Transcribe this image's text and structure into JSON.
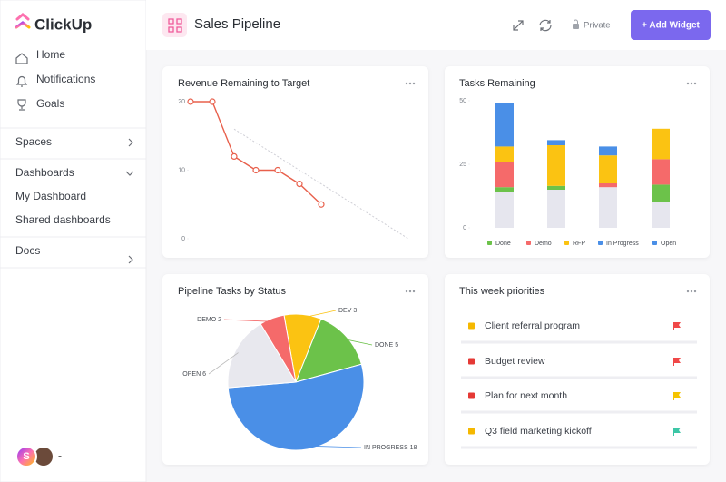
{
  "sidebar": {
    "logo": "ClickUp",
    "nav": [
      "Home",
      "Notifications",
      "Goals"
    ],
    "spaces": "Spaces",
    "dashboards": "Dashboards",
    "dashboard_items": [
      "My Dashboard",
      "Shared dashboards"
    ],
    "docs": "Docs",
    "avatar": "S"
  },
  "header": {
    "title": "Sales Pipeline",
    "privacy": "Private",
    "button": "+ Add Widget"
  },
  "chart_data": [
    {
      "type": "line",
      "title": "Revenue Remaining to Target",
      "xlim": [
        0,
        10
      ],
      "ylim": [
        0,
        20
      ],
      "yticks": [
        0,
        10,
        20
      ],
      "series": [
        {
          "color": "#e8604c",
          "x": [
            0,
            1,
            2,
            3,
            4,
            5,
            6
          ],
          "values": [
            20,
            20,
            12,
            10,
            10,
            8,
            5
          ]
        },
        {
          "color": "#cfcfd6",
          "dashed": true,
          "x": [
            2,
            10
          ],
          "values": [
            16,
            0
          ]
        }
      ]
    },
    {
      "type": "stacked-bar",
      "title": "Tasks Remaining",
      "categories": [
        null,
        null,
        null,
        null
      ],
      "ylim": [
        0,
        50
      ],
      "yticks": [
        0,
        25,
        50
      ],
      "series": [
        {
          "name": "Open",
          "color": "#e6e6ee",
          "legend_color": "#4a8fe7",
          "values": [
            14,
            15,
            16,
            10
          ]
        },
        {
          "name": "Done",
          "color": "#6cc24a",
          "values": [
            2,
            1.5,
            0,
            7
          ]
        },
        {
          "name": "Demo",
          "color": "#f56a6a",
          "values": [
            10,
            0,
            1.5,
            10
          ]
        },
        {
          "name": "RFP",
          "color": "#fbc312",
          "values": [
            6,
            16,
            11,
            12
          ]
        },
        {
          "name": "In Progress",
          "color": "#4a8fe7",
          "values": [
            17,
            2,
            3.5,
            0
          ]
        }
      ],
      "legend_order": [
        1,
        2,
        3,
        4,
        0
      ]
    },
    {
      "type": "pie",
      "title": "Pipeline Tasks by Status",
      "categories": [
        "DEV",
        "DONE",
        "IN PROGRESS",
        "OPEN",
        "DEMO"
      ],
      "values": [
        3,
        5,
        18,
        6,
        2
      ],
      "colors": [
        "#fbc312",
        "#6cc24a",
        "#4a8fe7",
        "#e8e8ee",
        "#f56a6a"
      ],
      "start_angle": -100
    }
  ],
  "priorities": {
    "title": "This week priorities",
    "items": [
      {
        "label": "Client referral program",
        "status_color": "#f5b800",
        "flag_color": "#f04848"
      },
      {
        "label": "Budget review",
        "status_color": "#e53935",
        "flag_color": "#f04848"
      },
      {
        "label": "Plan for next month",
        "status_color": "#e53935",
        "flag_color": "#f5c400"
      },
      {
        "label": "Q3 field marketing kickoff",
        "status_color": "#f5b800",
        "flag_color": "#3dc6a6"
      }
    ]
  }
}
